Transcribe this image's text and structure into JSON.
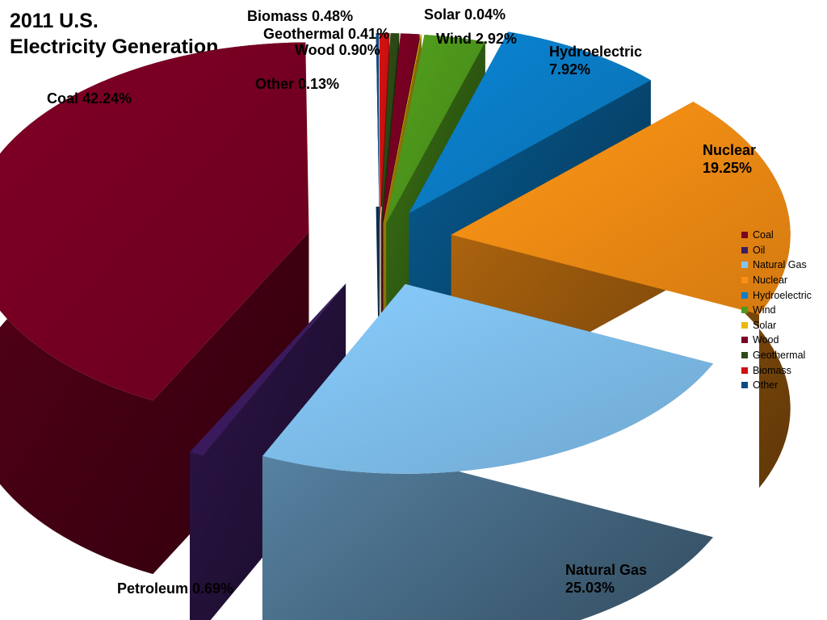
{
  "chart_data": {
    "type": "pie",
    "title_lines": [
      "2011 U.S.",
      "Electricity Generation"
    ],
    "slices": [
      {
        "key": "coal",
        "label": "Coal 42.24%",
        "legend": "Coal",
        "value": 42.24,
        "color": "#7b0023"
      },
      {
        "key": "petroleum",
        "label": "Petroleum 0.69%",
        "legend": "Oil",
        "value": 0.69,
        "color": "#3d1c62"
      },
      {
        "key": "natural-gas",
        "label": [
          "Natural Gas",
          "25.03%"
        ],
        "legend": "Natural Gas",
        "value": 25.03,
        "color": "#82c4f4"
      },
      {
        "key": "nuclear",
        "label": [
          "Nuclear",
          "19.25%"
        ],
        "legend": "Nuclear",
        "value": 19.25,
        "color": "#f99014"
      },
      {
        "key": "hydroelectric",
        "label": [
          "Hydroelectric",
          "7.92%"
        ],
        "legend": "Hydroelectric",
        "value": 7.92,
        "color": "#0a80cc"
      },
      {
        "key": "wind",
        "label": "Wind 2.92%",
        "legend": "Wind",
        "value": 2.92,
        "color": "#4f9a1c"
      },
      {
        "key": "solar",
        "label": "Solar 0.04%",
        "legend": "Solar",
        "value": 0.04,
        "color": "#e8b80a"
      },
      {
        "key": "wood",
        "label": "Wood 0.90%",
        "legend": "Wood",
        "value": 0.9,
        "color": "#7b0023"
      },
      {
        "key": "geothermal",
        "label": "Geothermal 0.41%",
        "legend": "Geothermal",
        "value": 0.41,
        "color": "#2d4a14"
      },
      {
        "key": "biomass",
        "label": "Biomass  0.48%",
        "legend": "Biomass",
        "value": 0.48,
        "color": "#d01010"
      },
      {
        "key": "other",
        "label": "Other 0.13%",
        "legend": "Other",
        "value": 0.13,
        "color": "#0c4a84"
      }
    ],
    "legend_placement": "right"
  }
}
